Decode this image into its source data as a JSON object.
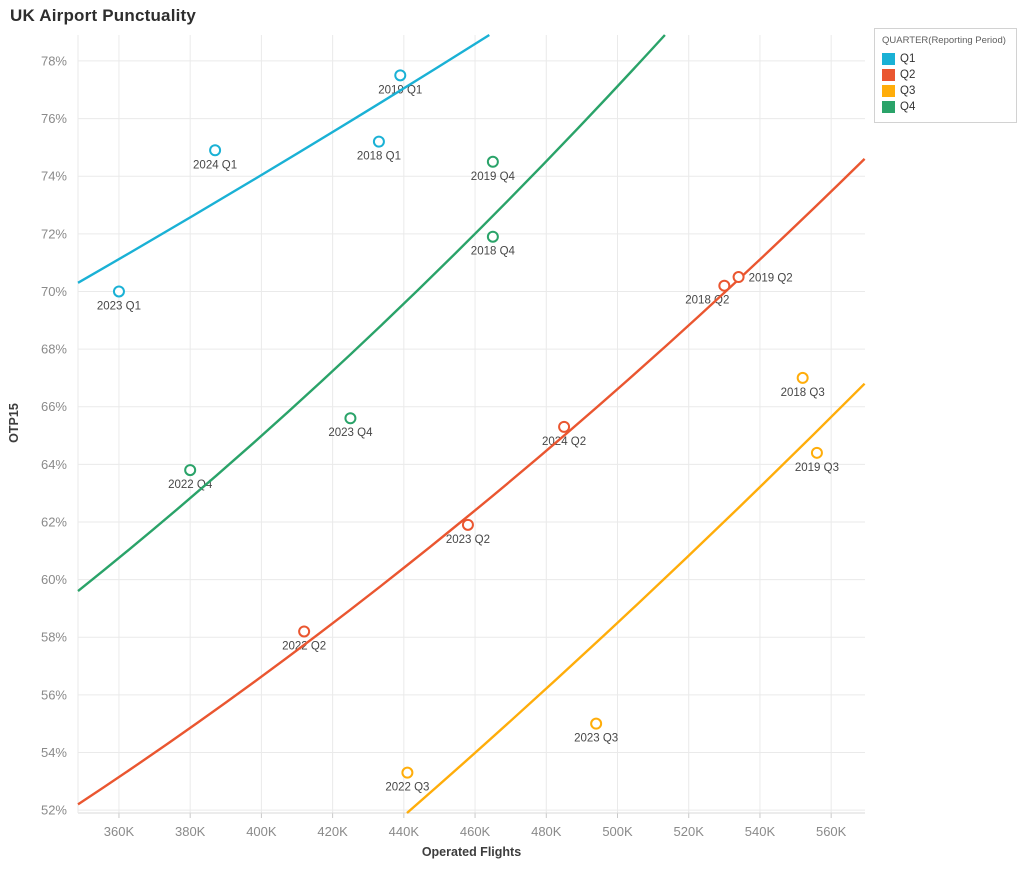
{
  "title": "UK Airport Punctuality",
  "chart_data": {
    "type": "scatter",
    "title": "UK Airport Punctuality",
    "xlabel": "Operated Flights",
    "ylabel": "OTP15",
    "grid": true,
    "x_axis": {
      "min": 348500,
      "max": 569500,
      "ticks": [
        360000,
        380000,
        400000,
        420000,
        440000,
        460000,
        480000,
        500000,
        520000,
        540000,
        560000
      ],
      "tick_labels": [
        "360K",
        "380K",
        "400K",
        "420K",
        "440K",
        "460K",
        "480K",
        "500K",
        "520K",
        "540K",
        "560K"
      ]
    },
    "y_axis": {
      "min": 51.9,
      "max": 78.9,
      "ticks": [
        52,
        54,
        56,
        58,
        60,
        62,
        64,
        66,
        68,
        70,
        72,
        74,
        76,
        78
      ],
      "tick_labels": [
        "52%",
        "54%",
        "56%",
        "58%",
        "60%",
        "62%",
        "64%",
        "66%",
        "68%",
        "70%",
        "72%",
        "74%",
        "76%",
        "78%"
      ]
    },
    "legend": {
      "title": "QUARTER(Reporting Period)",
      "position": "top-right",
      "entries": [
        {
          "label": "Q1",
          "color": "#1AB1D5"
        },
        {
          "label": "Q2",
          "color": "#EA5630"
        },
        {
          "label": "Q3",
          "color": "#FFAD0A"
        },
        {
          "label": "Q4",
          "color": "#2AA369"
        }
      ]
    },
    "series": [
      {
        "name": "Q1",
        "color": "#1AB1D5",
        "points": [
          {
            "label": "2023 Q1",
            "x": 360000,
            "y": 70.0
          },
          {
            "label": "2024 Q1",
            "x": 387000,
            "y": 74.9
          },
          {
            "label": "2018 Q1",
            "x": 433000,
            "y": 75.2
          },
          {
            "label": "2019 Q1",
            "x": 439000,
            "y": 77.5
          }
        ],
        "trend": [
          {
            "x": 348500,
            "y": 70.3
          },
          {
            "x": 406200,
            "y": 74.5
          },
          {
            "x": 464000,
            "y": 78.9
          }
        ]
      },
      {
        "name": "Q2",
        "color": "#EA5630",
        "points": [
          {
            "label": "2022 Q2",
            "x": 412000,
            "y": 58.2
          },
          {
            "label": "2023 Q2",
            "x": 458000,
            "y": 61.9
          },
          {
            "label": "2024 Q2",
            "x": 485000,
            "y": 65.3
          },
          {
            "label": "2018 Q2",
            "x": 530000,
            "y": 70.2,
            "label_dx": -17
          },
          {
            "label": "2019 Q2",
            "x": 534000,
            "y": 70.5,
            "label_side": "right"
          }
        ],
        "trend": [
          {
            "x": 348500,
            "y": 52.2
          },
          {
            "x": 459000,
            "y": 62.3
          },
          {
            "x": 569400,
            "y": 74.6
          }
        ]
      },
      {
        "name": "Q3",
        "color": "#FFAD0A",
        "points": [
          {
            "label": "2022 Q3",
            "x": 441000,
            "y": 53.3
          },
          {
            "label": "2023 Q3",
            "x": 494000,
            "y": 55.0
          },
          {
            "label": "2018 Q3",
            "x": 552000,
            "y": 67.0
          },
          {
            "label": "2019 Q3",
            "x": 556000,
            "y": 64.4
          }
        ],
        "trend": [
          {
            "x": 440900,
            "y": 51.9
          },
          {
            "x": 505200,
            "y": 59.1
          },
          {
            "x": 569400,
            "y": 66.8
          }
        ]
      },
      {
        "name": "Q4",
        "color": "#2AA369",
        "points": [
          {
            "label": "2022 Q4",
            "x": 380000,
            "y": 63.8
          },
          {
            "label": "2023 Q4",
            "x": 425000,
            "y": 65.6
          },
          {
            "label": "2018 Q4",
            "x": 465000,
            "y": 71.9
          },
          {
            "label": "2019 Q4",
            "x": 465000,
            "y": 74.5
          }
        ],
        "trend": [
          {
            "x": 348500,
            "y": 59.6
          },
          {
            "x": 430900,
            "y": 68.5
          },
          {
            "x": 513300,
            "y": 78.9
          }
        ]
      }
    ],
    "style": {
      "grid_color": "#eaeaea",
      "axis_line_color": "#d9d9d9",
      "tick_mark_color": "#c9c9c9",
      "tick_label_color": "#8a8a8a",
      "point_label_color": "#474747",
      "background": "#ffffff"
    }
  }
}
